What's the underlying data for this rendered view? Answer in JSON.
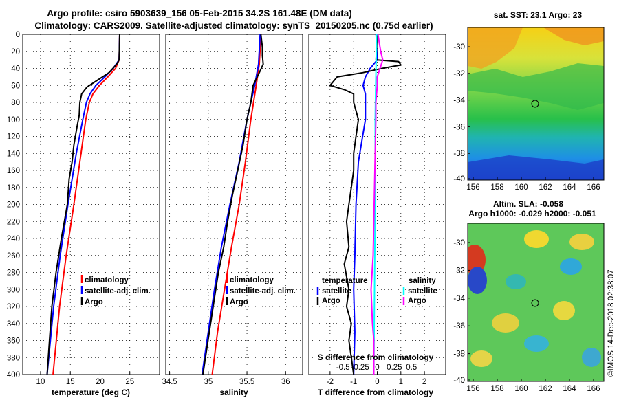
{
  "header": {
    "title_line1": "Argo profile: csiro 5903639_156 05-Feb-2015 34.2S 161.48E (DM data)",
    "title_line2": "Climatology: CARS2009. Satellite-adjusted climatology: synTS_20150205.nc (0.75d earlier)"
  },
  "colors": {
    "climatology": "#ff0000",
    "satellite": "#0000ff",
    "argo": "#000000",
    "sal_satellite": "#00ffff",
    "sal_argo": "#ff00ff"
  },
  "chart_data": [
    {
      "id": "temperature",
      "type": "line",
      "xlabel": "temperature (deg C)",
      "ylabel": "",
      "xlim": [
        7,
        30
      ],
      "ylim": [
        400,
        0
      ],
      "xticks": [
        "10",
        "15",
        "20",
        "25"
      ],
      "xtick_values": [
        10,
        15,
        20,
        25
      ],
      "yticks": [
        "0",
        "20",
        "40",
        "60",
        "80",
        "100",
        "120",
        "140",
        "160",
        "180",
        "200",
        "220",
        "240",
        "260",
        "280",
        "300",
        "320",
        "340",
        "360",
        "380",
        "400"
      ],
      "legend": [
        "climatology",
        "satellite-adj. clim.",
        "Argo"
      ],
      "series": [
        {
          "name": "climatology",
          "color": "#ff0000",
          "depth": [
            0,
            30,
            40,
            50,
            60,
            70,
            80,
            100,
            140,
            200,
            260,
            320,
            400
          ],
          "values": [
            23.3,
            23.2,
            22.6,
            21.3,
            19.9,
            18.8,
            18.2,
            17.6,
            16.8,
            15.6,
            14.3,
            13.2,
            12.1
          ]
        },
        {
          "name": "satellite-adj. clim.",
          "color": "#0000ff",
          "depth": [
            0,
            30,
            40,
            50,
            60,
            70,
            80,
            100,
            140,
            200,
            260,
            320,
            400
          ],
          "values": [
            23.3,
            23.2,
            22.2,
            20.8,
            19.3,
            18.3,
            17.7,
            17.1,
            16.0,
            14.6,
            13.3,
            12.2,
            11.1
          ]
        },
        {
          "name": "Argo",
          "color": "#000000",
          "depth": [
            0,
            30,
            35,
            45,
            55,
            62,
            70,
            80,
            95,
            110,
            130,
            150,
            170,
            200,
            240,
            280,
            320,
            360,
            400
          ],
          "values": [
            23.3,
            23.2,
            22.8,
            21.5,
            19.3,
            17.8,
            16.9,
            16.6,
            16.5,
            16.1,
            15.6,
            15.3,
            14.8,
            14.5,
            13.5,
            12.6,
            11.9,
            11.5,
            11.1
          ]
        }
      ]
    },
    {
      "id": "salinity",
      "type": "line",
      "xlabel": "salinity",
      "ylabel": "",
      "xlim": [
        34.45,
        36.22
      ],
      "ylim": [
        400,
        0
      ],
      "xticks": [
        "34.5",
        "35",
        "35.5",
        "36"
      ],
      "xtick_values": [
        34.5,
        35.0,
        35.5,
        36.0
      ],
      "legend": [
        "climatology",
        "satellite-adj. clim.",
        "Argo"
      ],
      "series": [
        {
          "name": "climatology",
          "color": "#ff0000",
          "depth": [
            0,
            35,
            60,
            100,
            150,
            200,
            250,
            300,
            350,
            400
          ],
          "values": [
            35.68,
            35.66,
            35.62,
            35.55,
            35.48,
            35.4,
            35.3,
            35.21,
            35.12,
            35.05
          ]
        },
        {
          "name": "satellite-adj. clim.",
          "color": "#0000ff",
          "depth": [
            0,
            35,
            60,
            100,
            150,
            200,
            250,
            300,
            350,
            400
          ],
          "values": [
            35.67,
            35.65,
            35.6,
            35.5,
            35.4,
            35.28,
            35.17,
            35.08,
            35.0,
            34.92
          ]
        },
        {
          "name": "Argo",
          "color": "#000000",
          "depth": [
            0,
            15,
            25,
            35,
            45,
            60,
            80,
            100,
            130,
            160,
            190,
            220,
            250,
            280,
            310,
            340,
            370,
            400
          ],
          "values": [
            35.68,
            35.7,
            35.7,
            35.71,
            35.66,
            35.58,
            35.55,
            35.5,
            35.45,
            35.38,
            35.31,
            35.25,
            35.2,
            35.13,
            35.08,
            35.03,
            34.98,
            34.93
          ]
        }
      ]
    },
    {
      "id": "difference",
      "type": "line",
      "xlabel": "T difference from climatology",
      "xlabel_top": "S difference from climatology",
      "xlim": [
        -2.9,
        2.9
      ],
      "ylim": [
        400,
        0
      ],
      "xticks": [
        "-2",
        "-1",
        "0",
        "1",
        "2"
      ],
      "xtick_values": [
        -2,
        -1,
        0,
        1,
        2
      ],
      "sticks": [
        "-0.5",
        "-0.25",
        "0",
        "0.25",
        "0.5"
      ],
      "stick_values": [
        -0.5,
        -0.25,
        0,
        0.25,
        0.5
      ],
      "legend": {
        "temperature_header": "temperature",
        "salinity_header": "salinity",
        "satellite": "satellite",
        "argo": "Argo"
      },
      "series": [
        {
          "name": "T satellite",
          "color": "#0000ff",
          "depth": [
            0,
            30,
            40,
            50,
            60,
            70,
            80,
            100,
            150,
            200,
            260,
            300,
            350,
            400
          ],
          "values": [
            -0.05,
            0.0,
            -0.3,
            -0.5,
            -0.6,
            -0.5,
            -0.5,
            -0.5,
            -0.8,
            -0.9,
            -0.95,
            -1.0,
            -0.95,
            -1.0
          ]
        },
        {
          "name": "T Argo",
          "color": "#000000",
          "depth": [
            0,
            30,
            32,
            36,
            40,
            45,
            50,
            60,
            65,
            70,
            80,
            100,
            120,
            140,
            160,
            180,
            200,
            220,
            250,
            270,
            300,
            320,
            340,
            360,
            380,
            400
          ],
          "values": [
            0.0,
            -0.05,
            0.9,
            1.0,
            0.2,
            -0.6,
            -1.7,
            -2.0,
            -1.4,
            -1.0,
            -1.0,
            -0.8,
            -0.9,
            -1.0,
            -1.0,
            -1.1,
            -1.2,
            -1.3,
            -1.2,
            -1.4,
            -1.2,
            -1.3,
            -1.1,
            -1.2,
            -1.1,
            -1.0
          ]
        },
        {
          "name": "S satellite",
          "color": "#00ffff",
          "depth": [
            0,
            50,
            100,
            200,
            300,
            400
          ],
          "values": [
            -0.01,
            -0.02,
            -0.03,
            -0.03,
            -0.04,
            -0.05
          ]
        },
        {
          "name": "S Argo",
          "color": "#ff00ff",
          "depth": [
            0,
            20,
            30,
            40,
            50,
            60,
            80,
            100,
            140,
            180,
            220,
            260,
            300,
            340,
            360,
            380,
            400
          ],
          "values": [
            0.01,
            0.05,
            0.08,
            0.04,
            0.0,
            0.0,
            -0.02,
            -0.02,
            -0.03,
            -0.04,
            -0.05,
            -0.06,
            -0.09,
            -0.07,
            -0.05,
            -0.05,
            -0.05
          ]
        }
      ]
    }
  ],
  "maps": {
    "sst": {
      "title": "sat. SST: 23.1 Argo: 23",
      "xticks": [
        "156",
        "158",
        "160",
        "162",
        "164",
        "166"
      ],
      "yticks": [
        "-30",
        "-32",
        "-34",
        "-36",
        "-38",
        "-40"
      ]
    },
    "sla": {
      "title_line1": "Altim. SLA: -0.058",
      "title_line2": "Argo h1000: -0.029 h2000: -0.051",
      "xticks": [
        "156",
        "158",
        "160",
        "162",
        "164",
        "166"
      ],
      "yticks": [
        "-30",
        "-32",
        "-34",
        "-36",
        "-38",
        "-40"
      ]
    }
  },
  "footer": {
    "credit": "©IMOS 14-Dec-2018 02:38:07"
  }
}
